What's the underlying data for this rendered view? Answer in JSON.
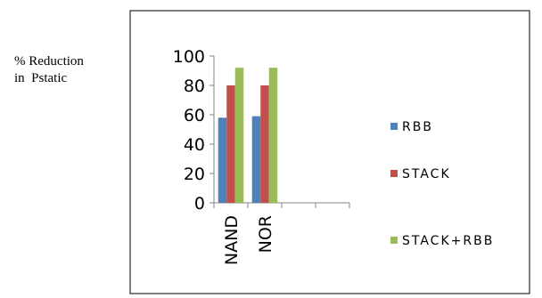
{
  "side_label": {
    "line1": "% Reduction",
    "line2": "in  Pstatic"
  },
  "chart_data": {
    "type": "bar",
    "categories": [
      "NAND",
      "NOR",
      "",
      ""
    ],
    "series": [
      {
        "name": "RBB",
        "values": [
          58,
          59,
          null,
          null
        ],
        "color": "#4F81BD"
      },
      {
        "name": "STACK",
        "values": [
          80,
          80,
          null,
          null
        ],
        "color": "#C0504D"
      },
      {
        "name": "STACK+RBB",
        "values": [
          92,
          92,
          null,
          null
        ],
        "color": "#9BBB59"
      }
    ],
    "ylim": [
      0,
      100
    ],
    "yticks": [
      0,
      20,
      40,
      60,
      80,
      100
    ],
    "legend_position": "right",
    "grid": false
  }
}
